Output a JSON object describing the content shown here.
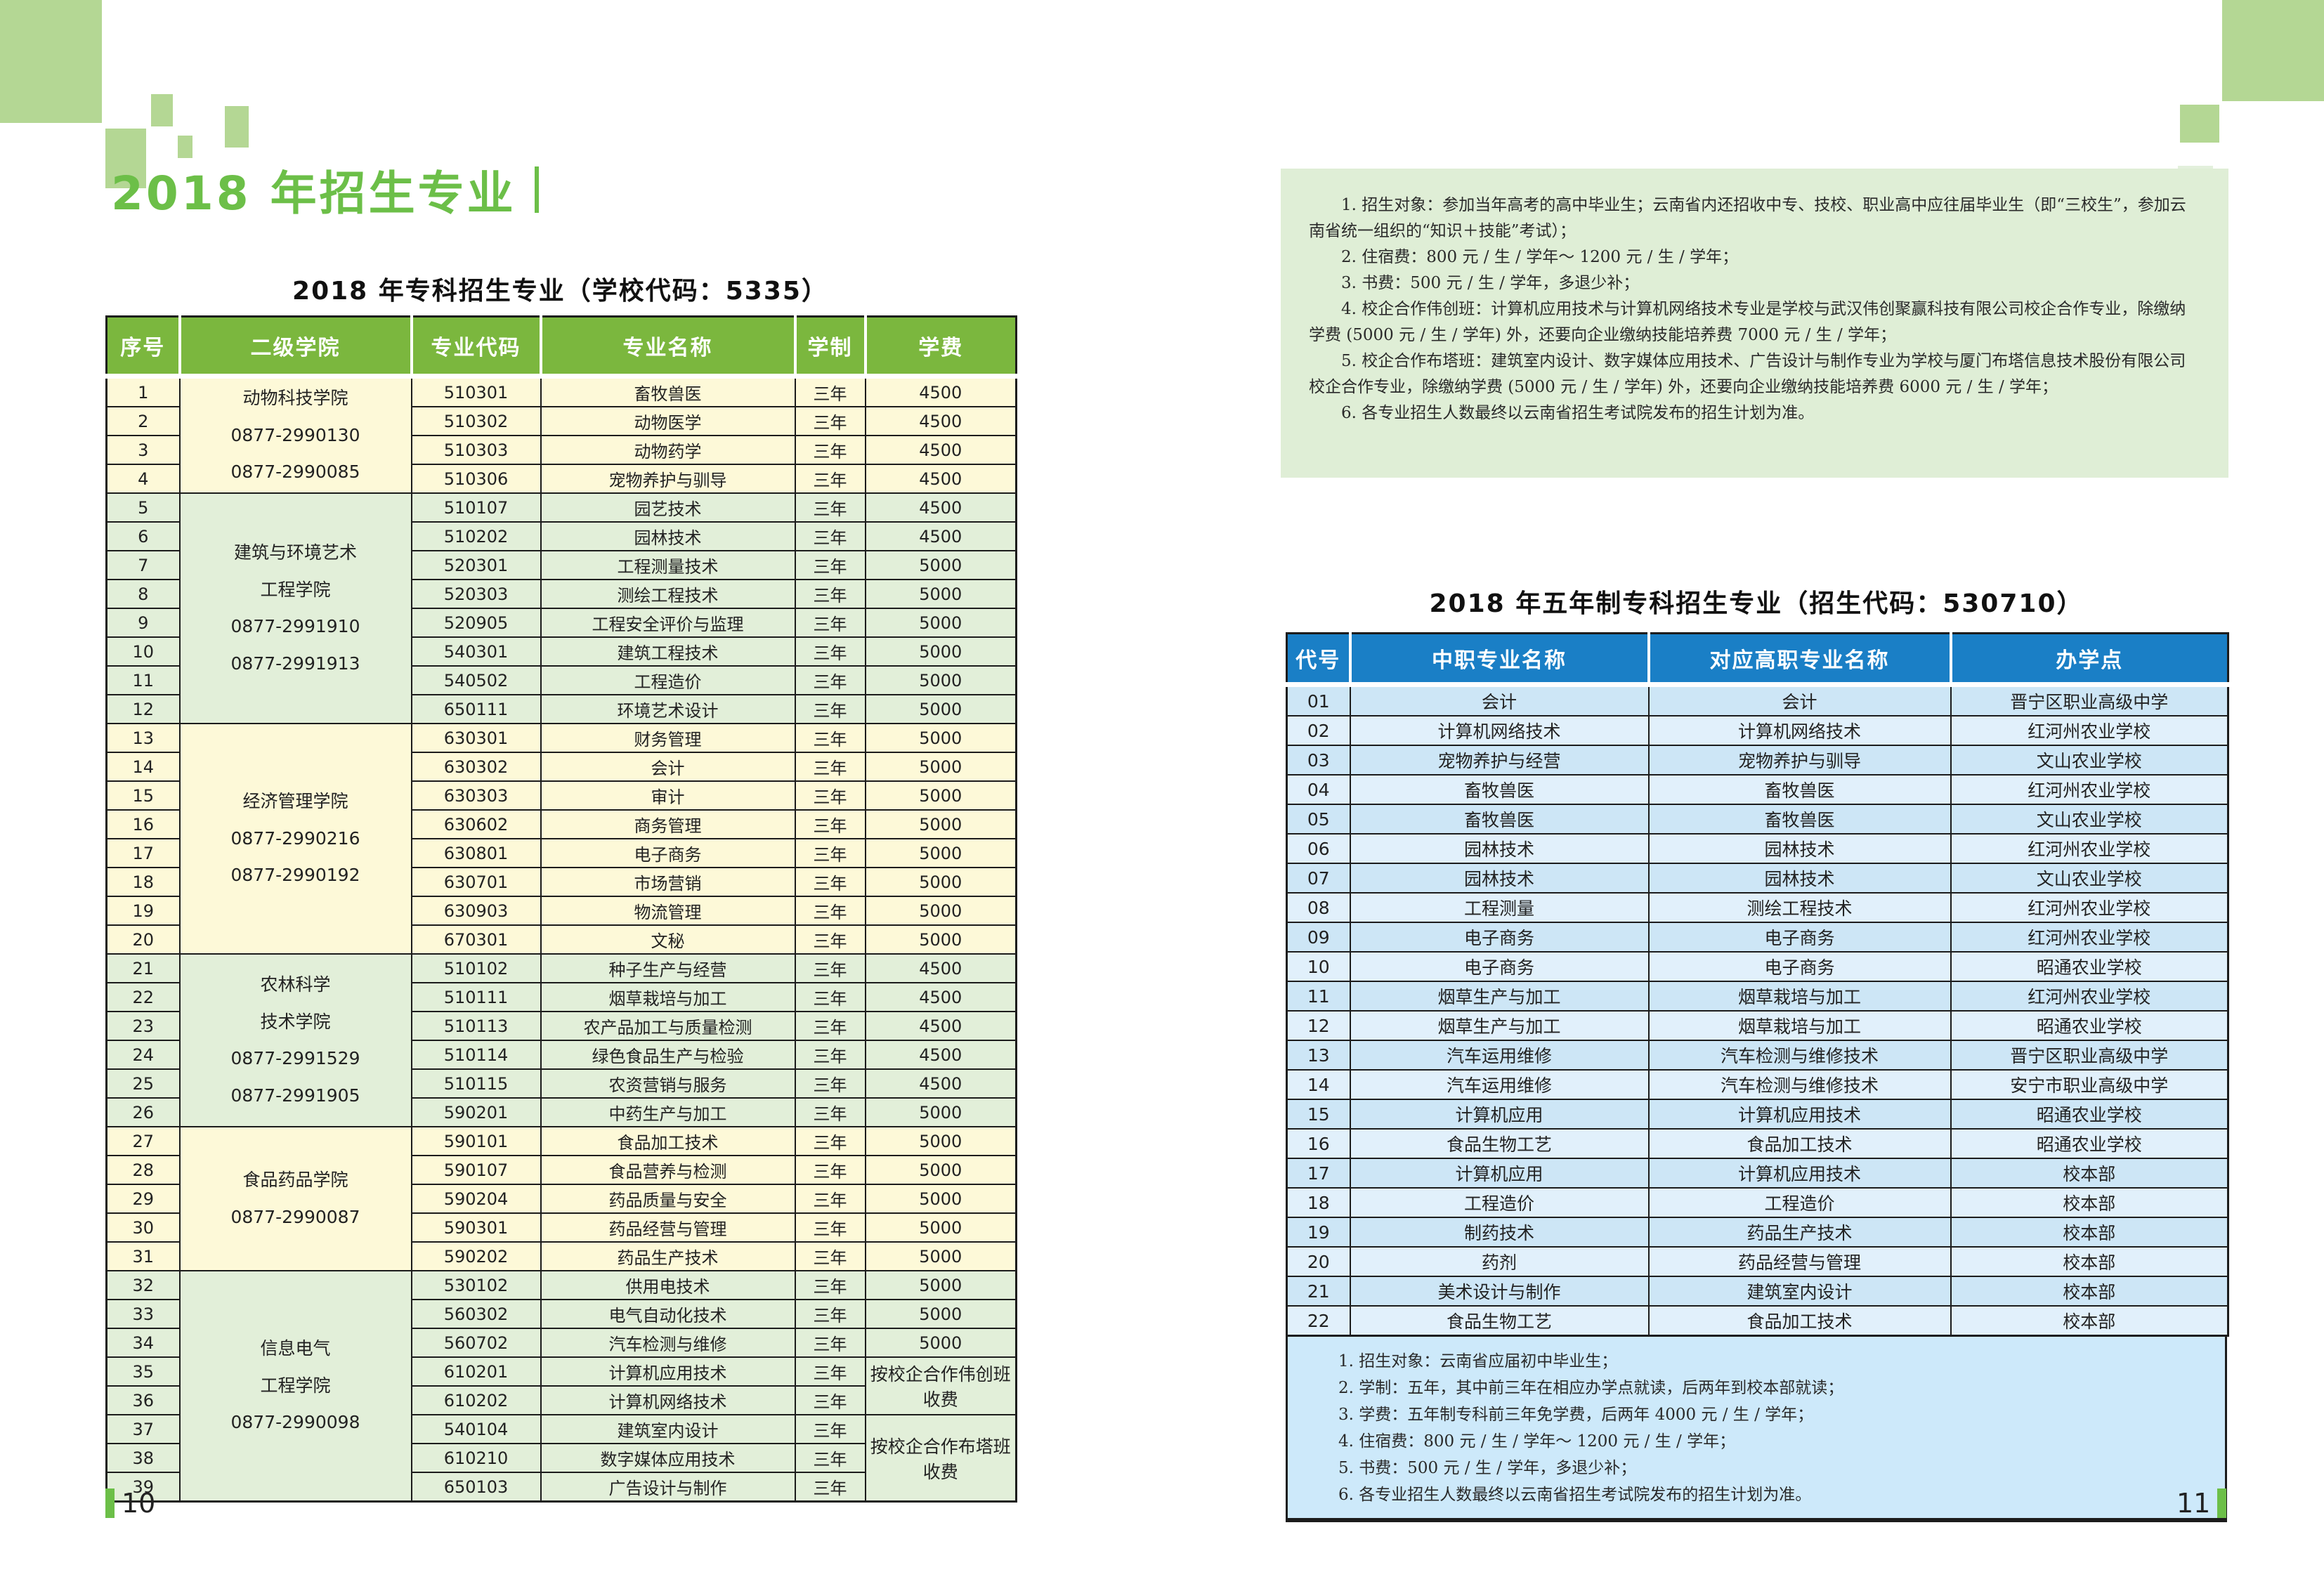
{
  "colors": {
    "accent_green": "#6cbf48",
    "decor_green": "#b4d794",
    "decor_green_pale": "#e3f0dc",
    "left_header_green": "#7bb73e",
    "row_cream": "#fdf9d8",
    "row_green": "#e2efd9",
    "notes_green_bg": "#dfeed6",
    "right_header_blue": "#1a7fc6",
    "row_blue_light": "#e1f0fb",
    "row_blue_dark": "#cde6f6",
    "notes_blue_bg": "#cde9fa",
    "border_dark": "#1c1c1c",
    "text_dark": "#222222"
  },
  "page": {
    "title": "2018 年招生专业",
    "left_page_number": "10",
    "right_page_number": "11"
  },
  "left_table": {
    "title": "2018 年专科招生专业（学校代码：5335）",
    "headers": [
      "序号",
      "二级学院",
      "专业代码",
      "专业名称",
      "学制",
      "学费"
    ],
    "groups": [
      {
        "college": [
          "动物科技学院",
          "0877-2990130",
          "0877-2990085"
        ],
        "theme": "cream",
        "rows": [
          {
            "no": "1",
            "code": "510301",
            "major": "畜牧兽医",
            "years": "三年",
            "fee": "4500"
          },
          {
            "no": "2",
            "code": "510302",
            "major": "动物医学",
            "years": "三年",
            "fee": "4500"
          },
          {
            "no": "3",
            "code": "510303",
            "major": "动物药学",
            "years": "三年",
            "fee": "4500"
          },
          {
            "no": "4",
            "code": "510306",
            "major": "宠物养护与驯导",
            "years": "三年",
            "fee": "4500"
          }
        ]
      },
      {
        "college": [
          "建筑与环境艺术",
          "工程学院",
          "0877-2991910",
          "0877-2991913"
        ],
        "theme": "green",
        "rows": [
          {
            "no": "5",
            "code": "510107",
            "major": "园艺技术",
            "years": "三年",
            "fee": "4500"
          },
          {
            "no": "6",
            "code": "510202",
            "major": "园林技术",
            "years": "三年",
            "fee": "4500"
          },
          {
            "no": "7",
            "code": "520301",
            "major": "工程测量技术",
            "years": "三年",
            "fee": "5000"
          },
          {
            "no": "8",
            "code": "520303",
            "major": "测绘工程技术",
            "years": "三年",
            "fee": "5000"
          },
          {
            "no": "9",
            "code": "520905",
            "major": "工程安全评价与监理",
            "years": "三年",
            "fee": "5000"
          },
          {
            "no": "10",
            "code": "540301",
            "major": "建筑工程技术",
            "years": "三年",
            "fee": "5000"
          },
          {
            "no": "11",
            "code": "540502",
            "major": "工程造价",
            "years": "三年",
            "fee": "5000"
          },
          {
            "no": "12",
            "code": "650111",
            "major": "环境艺术设计",
            "years": "三年",
            "fee": "5000"
          }
        ]
      },
      {
        "college": [
          "经济管理学院",
          "0877-2990216",
          "0877-2990192"
        ],
        "theme": "cream",
        "rows": [
          {
            "no": "13",
            "code": "630301",
            "major": "财务管理",
            "years": "三年",
            "fee": "5000"
          },
          {
            "no": "14",
            "code": "630302",
            "major": "会计",
            "years": "三年",
            "fee": "5000"
          },
          {
            "no": "15",
            "code": "630303",
            "major": "审计",
            "years": "三年",
            "fee": "5000"
          },
          {
            "no": "16",
            "code": "630602",
            "major": "商务管理",
            "years": "三年",
            "fee": "5000"
          },
          {
            "no": "17",
            "code": "630801",
            "major": "电子商务",
            "years": "三年",
            "fee": "5000"
          },
          {
            "no": "18",
            "code": "630701",
            "major": "市场营销",
            "years": "三年",
            "fee": "5000"
          },
          {
            "no": "19",
            "code": "630903",
            "major": "物流管理",
            "years": "三年",
            "fee": "5000"
          },
          {
            "no": "20",
            "code": "670301",
            "major": "文秘",
            "years": "三年",
            "fee": "5000"
          }
        ]
      },
      {
        "college": [
          "农林科学",
          "技术学院",
          "0877-2991529",
          "0877-2991905"
        ],
        "theme": "green",
        "rows": [
          {
            "no": "21",
            "code": "510102",
            "major": "种子生产与经营",
            "years": "三年",
            "fee": "4500"
          },
          {
            "no": "22",
            "code": "510111",
            "major": "烟草栽培与加工",
            "years": "三年",
            "fee": "4500"
          },
          {
            "no": "23",
            "code": "510113",
            "major": "农产品加工与质量检测",
            "years": "三年",
            "fee": "4500"
          },
          {
            "no": "24",
            "code": "510114",
            "major": "绿色食品生产与检验",
            "years": "三年",
            "fee": "4500"
          },
          {
            "no": "25",
            "code": "510115",
            "major": "农资营销与服务",
            "years": "三年",
            "fee": "4500"
          },
          {
            "no": "26",
            "code": "590201",
            "major": "中药生产与加工",
            "years": "三年",
            "fee": "5000"
          }
        ]
      },
      {
        "college": [
          "食品药品学院",
          "0877-2990087"
        ],
        "theme": "cream",
        "rows": [
          {
            "no": "27",
            "code": "590101",
            "major": "食品加工技术",
            "years": "三年",
            "fee": "5000"
          },
          {
            "no": "28",
            "code": "590107",
            "major": "食品营养与检测",
            "years": "三年",
            "fee": "5000"
          },
          {
            "no": "29",
            "code": "590204",
            "major": "药品质量与安全",
            "years": "三年",
            "fee": "5000"
          },
          {
            "no": "30",
            "code": "590301",
            "major": "药品经营与管理",
            "years": "三年",
            "fee": "5000"
          },
          {
            "no": "31",
            "code": "590202",
            "major": "药品生产技术",
            "years": "三年",
            "fee": "5000"
          }
        ]
      },
      {
        "college": [
          "信息电气",
          "工程学院",
          "0877-2990098"
        ],
        "theme": "green",
        "rows": [
          {
            "no": "32",
            "code": "530102",
            "major": "供用电技术",
            "years": "三年",
            "fee": "5000"
          },
          {
            "no": "33",
            "code": "560302",
            "major": "电气自动化技术",
            "years": "三年",
            "fee": "5000"
          },
          {
            "no": "34",
            "code": "560702",
            "major": "汽车检测与维修",
            "years": "三年",
            "fee": "5000"
          },
          {
            "no": "35",
            "code": "610201",
            "major": "计算机应用技术",
            "years": "三年",
            "fee": "按校企合作伟创班收费",
            "fee_rows": 2
          },
          {
            "no": "36",
            "code": "610202",
            "major": "计算机网络技术",
            "years": "三年"
          },
          {
            "no": "37",
            "code": "540104",
            "major": "建筑室内设计",
            "years": "三年",
            "fee": "按校企合作布塔班收费",
            "fee_rows": 3
          },
          {
            "no": "38",
            "code": "610210",
            "major": "数字媒体应用技术",
            "years": "三年"
          },
          {
            "no": "39",
            "code": "650103",
            "major": "广告设计与制作",
            "years": "三年"
          }
        ]
      }
    ]
  },
  "notes_top_right": {
    "items": [
      "1. 招生对象：参加当年高考的高中毕业生；云南省内还招收中专、技校、职业高中应往届毕业生（即“三校生”，参加云南省统一组织的“知识＋技能”考试）；",
      "2. 住宿费：800 元 / 生 / 学年～ 1200 元 / 生 / 学年；",
      "3. 书费：500 元 / 生 / 学年，多退少补；",
      "4. 校企合作伟创班：计算机应用技术与计算机网络技术专业是学校与武汉伟创聚赢科技有限公司校企合作专业，除缴纳学费 (5000 元 / 生 / 学年) 外，还要向企业缴纳技能培养费 7000 元 / 生 / 学年；",
      "5. 校企合作布塔班：建筑室内设计、数字媒体应用技术、广告设计与制作专业为学校与厦门布塔信息技术股份有限公司校企合作专业，除缴纳学费 (5000 元 / 生 / 学年) 外，还要向企业缴纳技能培养费 6000 元 / 生 / 学年；",
      "6. 各专业招生人数最终以云南省招生考试院发布的招生计划为准。"
    ]
  },
  "right_table": {
    "title": "2018 年五年制专科招生专业（招生代码：530710）",
    "headers": [
      "代号",
      "中职专业名称",
      "对应高职专业名称",
      "办学点"
    ],
    "rows": [
      {
        "no": "01",
        "mid_major": "会计",
        "high_major": "会计",
        "site": "晋宁区职业高级中学"
      },
      {
        "no": "02",
        "mid_major": "计算机网络技术",
        "high_major": "计算机网络技术",
        "site": "红河州农业学校"
      },
      {
        "no": "03",
        "mid_major": "宠物养护与经营",
        "high_major": "宠物养护与驯导",
        "site": "文山农业学校"
      },
      {
        "no": "04",
        "mid_major": "畜牧兽医",
        "high_major": "畜牧兽医",
        "site": "红河州农业学校"
      },
      {
        "no": "05",
        "mid_major": "畜牧兽医",
        "high_major": "畜牧兽医",
        "site": "文山农业学校"
      },
      {
        "no": "06",
        "mid_major": "园林技术",
        "high_major": "园林技术",
        "site": "红河州农业学校"
      },
      {
        "no": "07",
        "mid_major": "园林技术",
        "high_major": "园林技术",
        "site": "文山农业学校"
      },
      {
        "no": "08",
        "mid_major": "工程测量",
        "high_major": "测绘工程技术",
        "site": "红河州农业学校"
      },
      {
        "no": "09",
        "mid_major": "电子商务",
        "high_major": "电子商务",
        "site": "红河州农业学校"
      },
      {
        "no": "10",
        "mid_major": "电子商务",
        "high_major": "电子商务",
        "site": "昭通农业学校"
      },
      {
        "no": "11",
        "mid_major": "烟草生产与加工",
        "high_major": "烟草栽培与加工",
        "site": "红河州农业学校"
      },
      {
        "no": "12",
        "mid_major": "烟草生产与加工",
        "high_major": "烟草栽培与加工",
        "site": "昭通农业学校"
      },
      {
        "no": "13",
        "mid_major": "汽车运用维修",
        "high_major": "汽车检测与维修技术",
        "site": "晋宁区职业高级中学"
      },
      {
        "no": "14",
        "mid_major": "汽车运用维修",
        "high_major": "汽车检测与维修技术",
        "site": "安宁市职业高级中学"
      },
      {
        "no": "15",
        "mid_major": "计算机应用",
        "high_major": "计算机应用技术",
        "site": "昭通农业学校"
      },
      {
        "no": "16",
        "mid_major": "食品生物工艺",
        "high_major": "食品加工技术",
        "site": "昭通农业学校"
      },
      {
        "no": "17",
        "mid_major": "计算机应用",
        "high_major": "计算机应用技术",
        "site": "校本部"
      },
      {
        "no": "18",
        "mid_major": "工程造价",
        "high_major": "工程造价",
        "site": "校本部"
      },
      {
        "no": "19",
        "mid_major": "制药技术",
        "high_major": "药品生产技术",
        "site": "校本部"
      },
      {
        "no": "20",
        "mid_major": "药剂",
        "high_major": "药品经营与管理",
        "site": "校本部"
      },
      {
        "no": "21",
        "mid_major": "美术设计与制作",
        "high_major": "建筑室内设计",
        "site": "校本部"
      },
      {
        "no": "22",
        "mid_major": "食品生物工艺",
        "high_major": "食品加工技术",
        "site": "校本部"
      }
    ],
    "notes": [
      "1. 招生对象：云南省应届初中毕业生；",
      "2. 学制：五年，其中前三年在相应办学点就读，后两年到校本部就读；",
      "3. 学费：五年制专科前三年免学费，后两年 4000 元 / 生 / 学年；",
      "4. 住宿费：800 元 / 生 / 学年～ 1200 元 / 生 / 学年；",
      "5. 书费：500 元 / 生 / 学年，多退少补；",
      "6. 各专业招生人数最终以云南省招生考试院发布的招生计划为准。"
    ]
  }
}
